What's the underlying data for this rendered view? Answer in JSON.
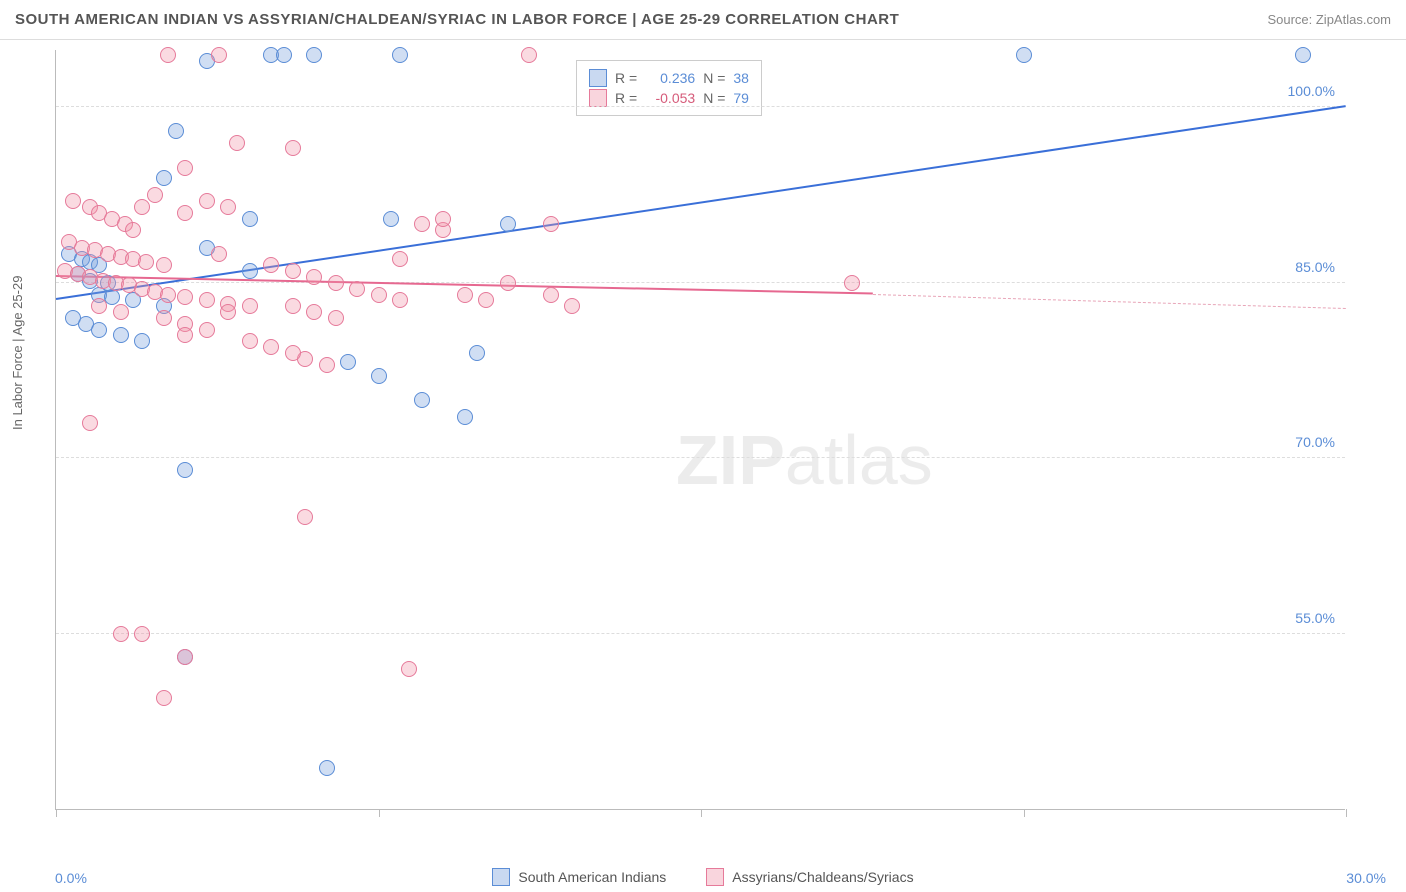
{
  "title": "SOUTH AMERICAN INDIAN VS ASSYRIAN/CHALDEAN/SYRIAC IN LABOR FORCE | AGE 25-29 CORRELATION CHART",
  "source": "Source: ZipAtlas.com",
  "y_axis_label": "In Labor Force | Age 25-29",
  "watermark_a": "ZIP",
  "watermark_b": "atlas",
  "chart": {
    "type": "scatter",
    "xlim": [
      0,
      30
    ],
    "ylim": [
      40,
      105
    ],
    "x_ticks": [
      0,
      7.5,
      15,
      22.5,
      30
    ],
    "x_tick_labels": {
      "0": "0.0%",
      "30": "30.0%"
    },
    "y_ticks": [
      55,
      70,
      85,
      100
    ],
    "y_tick_labels": {
      "55": "55.0%",
      "70": "70.0%",
      "85": "85.0%",
      "100": "100.0%"
    },
    "background_color": "#ffffff",
    "grid_color": "#dddddd",
    "axis_color": "#bbbbbb",
    "series": [
      {
        "name": "South American Indians",
        "color_fill": "rgba(120,160,220,0.35)",
        "color_stroke": "#5b8dd6",
        "r_value": "0.236",
        "n_value": "38",
        "regression": {
          "x1": 0,
          "y1": 83.5,
          "x2": 30,
          "y2": 100,
          "color": "#3a6fd8"
        },
        "points": [
          [
            3.5,
            104
          ],
          [
            5.0,
            104.5
          ],
          [
            5.3,
            104.5
          ],
          [
            6.0,
            104.5
          ],
          [
            8.0,
            104.5
          ],
          [
            22.5,
            104.5
          ],
          [
            29.0,
            104.5
          ],
          [
            2.8,
            98
          ],
          [
            2.5,
            94
          ],
          [
            4.5,
            90.5
          ],
          [
            0.3,
            87.5
          ],
          [
            0.6,
            87
          ],
          [
            0.8,
            86.8
          ],
          [
            1.0,
            86.5
          ],
          [
            0.5,
            85.8
          ],
          [
            0.8,
            85.2
          ],
          [
            1.2,
            85
          ],
          [
            1.0,
            84
          ],
          [
            1.3,
            83.8
          ],
          [
            1.8,
            83.5
          ],
          [
            2.5,
            83
          ],
          [
            0.4,
            82
          ],
          [
            0.7,
            81.5
          ],
          [
            1.0,
            81
          ],
          [
            1.5,
            80.5
          ],
          [
            2.0,
            80
          ],
          [
            3.5,
            88
          ],
          [
            4.5,
            86
          ],
          [
            7.8,
            90.5
          ],
          [
            10.5,
            90
          ],
          [
            6.8,
            78.2
          ],
          [
            7.5,
            77
          ],
          [
            8.5,
            75
          ],
          [
            9.5,
            73.5
          ],
          [
            3.0,
            69
          ],
          [
            3.0,
            53
          ],
          [
            6.3,
            43.5
          ],
          [
            9.8,
            79
          ]
        ]
      },
      {
        "name": "Assyrians/Chaldeans/Syriacs",
        "color_fill": "rgba(240,150,170,0.35)",
        "color_stroke": "#e67a9a",
        "r_value": "-0.053",
        "n_value": "79",
        "regression": {
          "x1": 0,
          "y1": 85.5,
          "x2": 19,
          "y2": 84,
          "color": "#e66890",
          "dashed_extend_to": 30,
          "dashed_y2": 82.8
        },
        "points": [
          [
            2.6,
            104.5
          ],
          [
            3.8,
            104.5
          ],
          [
            11.0,
            104.5
          ],
          [
            4.2,
            97
          ],
          [
            5.5,
            96.5
          ],
          [
            3.0,
            94.8
          ],
          [
            0.4,
            92
          ],
          [
            0.8,
            91.5
          ],
          [
            1.0,
            91
          ],
          [
            1.3,
            90.5
          ],
          [
            1.6,
            90
          ],
          [
            2.0,
            91.5
          ],
          [
            2.3,
            92.5
          ],
          [
            3.0,
            91
          ],
          [
            3.5,
            92
          ],
          [
            4.0,
            91.5
          ],
          [
            1.8,
            89.5
          ],
          [
            0.3,
            88.5
          ],
          [
            0.6,
            88
          ],
          [
            0.9,
            87.8
          ],
          [
            1.2,
            87.5
          ],
          [
            1.5,
            87.2
          ],
          [
            1.8,
            87
          ],
          [
            2.1,
            86.8
          ],
          [
            2.5,
            86.5
          ],
          [
            0.2,
            86
          ],
          [
            0.5,
            85.8
          ],
          [
            0.8,
            85.5
          ],
          [
            1.1,
            85.2
          ],
          [
            1.4,
            85
          ],
          [
            1.7,
            84.8
          ],
          [
            2.0,
            84.5
          ],
          [
            2.3,
            84.2
          ],
          [
            2.6,
            84
          ],
          [
            3.0,
            83.8
          ],
          [
            3.5,
            83.5
          ],
          [
            4.0,
            83.2
          ],
          [
            4.5,
            83
          ],
          [
            5.0,
            86.5
          ],
          [
            5.5,
            86
          ],
          [
            6.0,
            85.5
          ],
          [
            6.5,
            85
          ],
          [
            7.0,
            84.5
          ],
          [
            7.5,
            84
          ],
          [
            8.0,
            83.5
          ],
          [
            8.5,
            90
          ],
          [
            9.0,
            89.5
          ],
          [
            9.5,
            84
          ],
          [
            10.0,
            83.5
          ],
          [
            11.5,
            84
          ],
          [
            12.0,
            83
          ],
          [
            2.5,
            82
          ],
          [
            3.0,
            81.5
          ],
          [
            3.5,
            81
          ],
          [
            4.0,
            82.5
          ],
          [
            1.0,
            83
          ],
          [
            1.5,
            82.5
          ],
          [
            5.5,
            83
          ],
          [
            6.0,
            82.5
          ],
          [
            6.5,
            82
          ],
          [
            3.0,
            80.5
          ],
          [
            5.8,
            78.5
          ],
          [
            6.3,
            78
          ],
          [
            5.8,
            65
          ],
          [
            0.8,
            73
          ],
          [
            1.5,
            55
          ],
          [
            2.0,
            55
          ],
          [
            3.0,
            53
          ],
          [
            2.5,
            49.5
          ],
          [
            8.2,
            52
          ],
          [
            4.5,
            80
          ],
          [
            5.0,
            79.5
          ],
          [
            5.5,
            79
          ],
          [
            8.0,
            87
          ],
          [
            9.0,
            90.5
          ],
          [
            10.5,
            85
          ],
          [
            11.5,
            90
          ],
          [
            18.5,
            85
          ],
          [
            3.8,
            87.5
          ]
        ]
      }
    ]
  },
  "legend": {
    "series1_label": "South American Indians",
    "series2_label": "Assyrians/Chaldeans/Syriacs"
  },
  "stats_labels": {
    "r": "R =",
    "n": "N ="
  }
}
